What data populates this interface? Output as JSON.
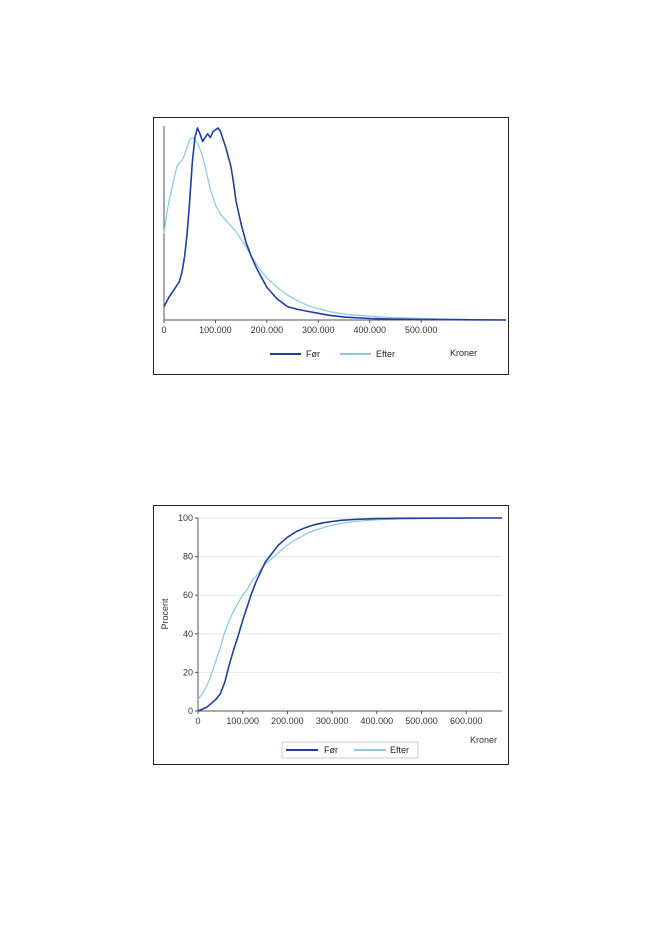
{
  "colors": {
    "foer": "#1f3f9a",
    "efter": "#8fcbe6",
    "axis": "#555555",
    "grid": "#e6e6e6"
  },
  "chart_data": [
    {
      "type": "line",
      "x_ticks": [
        "0",
        "100.000",
        "200.000",
        "300.000",
        "400.000",
        "500.000"
      ],
      "xlabel": "Kroner",
      "xlim": [
        0,
        665000
      ],
      "ylim": [
        0,
        1.0
      ],
      "grid": false,
      "legend_position": "bottom",
      "series": [
        {
          "name": "Før",
          "color": "#1f3f9a",
          "points": [
            [
              0,
              0.07
            ],
            [
              10000,
              0.12
            ],
            [
              20000,
              0.16
            ],
            [
              30000,
              0.2
            ],
            [
              35000,
              0.25
            ],
            [
              40000,
              0.33
            ],
            [
              45000,
              0.45
            ],
            [
              50000,
              0.62
            ],
            [
              55000,
              0.82
            ],
            [
              60000,
              0.95
            ],
            [
              65000,
              1.0
            ],
            [
              70000,
              0.97
            ],
            [
              75000,
              0.93
            ],
            [
              80000,
              0.95
            ],
            [
              85000,
              0.97
            ],
            [
              90000,
              0.95
            ],
            [
              95000,
              0.98
            ],
            [
              100000,
              0.99
            ],
            [
              105000,
              1.0
            ],
            [
              110000,
              0.98
            ],
            [
              115000,
              0.94
            ],
            [
              120000,
              0.9
            ],
            [
              125000,
              0.85
            ],
            [
              130000,
              0.8
            ],
            [
              135000,
              0.72
            ],
            [
              140000,
              0.62
            ],
            [
              150000,
              0.5
            ],
            [
              160000,
              0.4
            ],
            [
              170000,
              0.33
            ],
            [
              180000,
              0.27
            ],
            [
              190000,
              0.22
            ],
            [
              200000,
              0.17
            ],
            [
              210000,
              0.14
            ],
            [
              220000,
              0.11
            ],
            [
              230000,
              0.09
            ],
            [
              240000,
              0.07
            ],
            [
              260000,
              0.055
            ],
            [
              280000,
              0.045
            ],
            [
              300000,
              0.035
            ],
            [
              320000,
              0.025
            ],
            [
              350000,
              0.015
            ],
            [
              400000,
              0.008
            ],
            [
              450000,
              0.004
            ],
            [
              500000,
              0.003
            ],
            [
              600000,
              0.001
            ],
            [
              665000,
              0.0
            ]
          ]
        },
        {
          "name": "Efter",
          "color": "#8fcbe6",
          "points": [
            [
              0,
              0.45
            ],
            [
              5000,
              0.55
            ],
            [
              10000,
              0.62
            ],
            [
              15000,
              0.68
            ],
            [
              20000,
              0.74
            ],
            [
              25000,
              0.8
            ],
            [
              30000,
              0.82
            ],
            [
              35000,
              0.83
            ],
            [
              40000,
              0.86
            ],
            [
              45000,
              0.9
            ],
            [
              50000,
              0.94
            ],
            [
              55000,
              0.95
            ],
            [
              60000,
              0.94
            ],
            [
              65000,
              0.92
            ],
            [
              70000,
              0.89
            ],
            [
              75000,
              0.85
            ],
            [
              80000,
              0.8
            ],
            [
              85000,
              0.74
            ],
            [
              90000,
              0.68
            ],
            [
              95000,
              0.64
            ],
            [
              100000,
              0.6
            ],
            [
              110000,
              0.55
            ],
            [
              120000,
              0.52
            ],
            [
              130000,
              0.49
            ],
            [
              140000,
              0.46
            ],
            [
              150000,
              0.42
            ],
            [
              160000,
              0.38
            ],
            [
              170000,
              0.33
            ],
            [
              180000,
              0.29
            ],
            [
              190000,
              0.25
            ],
            [
              200000,
              0.22
            ],
            [
              220000,
              0.17
            ],
            [
              240000,
              0.13
            ],
            [
              260000,
              0.1
            ],
            [
              280000,
              0.075
            ],
            [
              300000,
              0.06
            ],
            [
              320000,
              0.045
            ],
            [
              350000,
              0.03
            ],
            [
              400000,
              0.02
            ],
            [
              450000,
              0.012
            ],
            [
              500000,
              0.008
            ],
            [
              550000,
              0.004
            ],
            [
              600000,
              0.002
            ],
            [
              665000,
              0.001
            ]
          ]
        }
      ]
    },
    {
      "type": "line",
      "x_ticks": [
        "0",
        "100.000",
        "200.000",
        "300.000",
        "400.000",
        "500.000",
        "600.000"
      ],
      "y_ticks": [
        "0",
        "20",
        "40",
        "60",
        "80",
        "100"
      ],
      "xlabel": "Kroner",
      "ylabel": "Procent",
      "xlim": [
        0,
        680000
      ],
      "ylim": [
        0,
        100
      ],
      "grid": true,
      "legend_position": "bottom",
      "series": [
        {
          "name": "Før",
          "color": "#1f3f9a",
          "points": [
            [
              0,
              0
            ],
            [
              10000,
              1
            ],
            [
              20000,
              2
            ],
            [
              30000,
              4
            ],
            [
              40000,
              6
            ],
            [
              50000,
              9
            ],
            [
              60000,
              15
            ],
            [
              70000,
              24
            ],
            [
              80000,
              32
            ],
            [
              90000,
              39
            ],
            [
              100000,
              47
            ],
            [
              110000,
              54
            ],
            [
              120000,
              61
            ],
            [
              130000,
              67
            ],
            [
              140000,
              72
            ],
            [
              150000,
              77
            ],
            [
              160000,
              80
            ],
            [
              170000,
              83
            ],
            [
              180000,
              86
            ],
            [
              190000,
              88
            ],
            [
              200000,
              90
            ],
            [
              220000,
              93
            ],
            [
              240000,
              95
            ],
            [
              260000,
              96.5
            ],
            [
              280000,
              97.5
            ],
            [
              300000,
              98.2
            ],
            [
              320000,
              98.8
            ],
            [
              350000,
              99.3
            ],
            [
              400000,
              99.7
            ],
            [
              450000,
              99.85
            ],
            [
              500000,
              99.9
            ],
            [
              600000,
              100
            ],
            [
              680000,
              100
            ]
          ]
        },
        {
          "name": "Efter",
          "color": "#8fcbe6",
          "points": [
            [
              0,
              6
            ],
            [
              10000,
              9
            ],
            [
              20000,
              13
            ],
            [
              30000,
              19
            ],
            [
              40000,
              26
            ],
            [
              50000,
              33
            ],
            [
              60000,
              41
            ],
            [
              70000,
              47
            ],
            [
              80000,
              52
            ],
            [
              90000,
              56
            ],
            [
              100000,
              60
            ],
            [
              110000,
              63
            ],
            [
              120000,
              67
            ],
            [
              130000,
              70
            ],
            [
              140000,
              73
            ],
            [
              150000,
              76
            ],
            [
              160000,
              78
            ],
            [
              170000,
              80
            ],
            [
              180000,
              82
            ],
            [
              190000,
              84
            ],
            [
              200000,
              86
            ],
            [
              220000,
              89
            ],
            [
              240000,
              91.5
            ],
            [
              260000,
              93.5
            ],
            [
              280000,
              95
            ],
            [
              300000,
              96.3
            ],
            [
              320000,
              97.2
            ],
            [
              350000,
              98.2
            ],
            [
              400000,
              99.1
            ],
            [
              450000,
              99.5
            ],
            [
              500000,
              99.7
            ],
            [
              600000,
              99.9
            ],
            [
              680000,
              100
            ]
          ]
        }
      ]
    }
  ]
}
